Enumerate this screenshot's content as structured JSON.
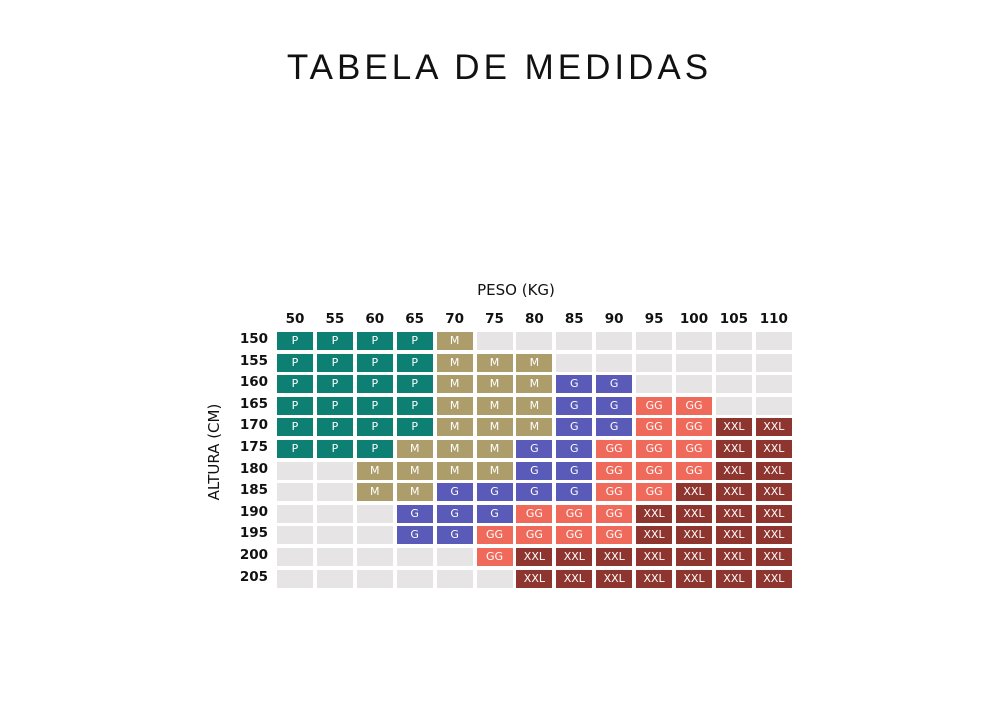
{
  "title": "TABELA DE MEDIDAS",
  "x_label": "PESO (KG)",
  "y_label": "ALTURA (CM)",
  "colors": {
    "P": "#0e7f73",
    "M": "#ad9d6a",
    "G": "#5a5ab8",
    "GG": "#f06a5c",
    "XXL": "#8e3530",
    "empty": "#e6e4e5"
  },
  "chart_data": {
    "type": "table",
    "columns": [
      "50",
      "55",
      "60",
      "65",
      "70",
      "75",
      "80",
      "85",
      "90",
      "95",
      "100",
      "105",
      "110"
    ],
    "rows": [
      {
        "label": "150",
        "cells": [
          "P",
          "P",
          "P",
          "P",
          "M",
          "",
          "",
          "",
          "",
          "",
          "",
          "",
          ""
        ]
      },
      {
        "label": "155",
        "cells": [
          "P",
          "P",
          "P",
          "P",
          "M",
          "M",
          "M",
          "",
          "",
          "",
          "",
          "",
          ""
        ]
      },
      {
        "label": "160",
        "cells": [
          "P",
          "P",
          "P",
          "P",
          "M",
          "M",
          "M",
          "G",
          "G",
          "",
          "",
          "",
          ""
        ]
      },
      {
        "label": "165",
        "cells": [
          "P",
          "P",
          "P",
          "P",
          "M",
          "M",
          "M",
          "G",
          "G",
          "GG",
          "GG",
          "",
          ""
        ]
      },
      {
        "label": "170",
        "cells": [
          "P",
          "P",
          "P",
          "P",
          "M",
          "M",
          "M",
          "G",
          "G",
          "GG",
          "GG",
          "XXL",
          "XXL"
        ]
      },
      {
        "label": "175",
        "cells": [
          "P",
          "P",
          "P",
          "M",
          "M",
          "M",
          "G",
          "G",
          "GG",
          "GG",
          "GG",
          "XXL",
          "XXL"
        ]
      },
      {
        "label": "180",
        "cells": [
          "",
          "",
          "M",
          "M",
          "M",
          "M",
          "G",
          "G",
          "GG",
          "GG",
          "GG",
          "XXL",
          "XXL"
        ]
      },
      {
        "label": "185",
        "cells": [
          "",
          "",
          "M",
          "M",
          "G",
          "G",
          "G",
          "G",
          "GG",
          "GG",
          "XXL",
          "XXL",
          "XXL"
        ]
      },
      {
        "label": "190",
        "cells": [
          "",
          "",
          "",
          "G",
          "G",
          "G",
          "GG",
          "GG",
          "GG",
          "XXL",
          "XXL",
          "XXL",
          "XXL"
        ]
      },
      {
        "label": "195",
        "cells": [
          "",
          "",
          "",
          "G",
          "G",
          "GG",
          "GG",
          "GG",
          "GG",
          "XXL",
          "XXL",
          "XXL",
          "XXL"
        ]
      },
      {
        "label": "200",
        "cells": [
          "",
          "",
          "",
          "",
          "",
          "GG",
          "XXL",
          "XXL",
          "XXL",
          "XXL",
          "XXL",
          "XXL",
          "XXL"
        ]
      },
      {
        "label": "205",
        "cells": [
          "",
          "",
          "",
          "",
          "",
          "",
          "XXL",
          "XXL",
          "XXL",
          "XXL",
          "XXL",
          "XXL",
          "XXL"
        ]
      }
    ]
  }
}
